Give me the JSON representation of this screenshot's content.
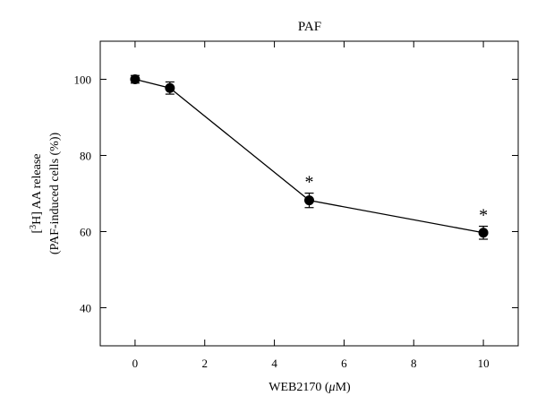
{
  "chart_data": {
    "type": "line",
    "title": "PAF",
    "xlabel_main": "WEB2170 (",
    "xlabel_unit_mu": "μ",
    "xlabel_unit_rest": "M)",
    "ylabel_line1_prefix": "[",
    "ylabel_line1_sup": "3",
    "ylabel_line1_suffix": "H] AA release",
    "ylabel_line2": "(PAF-induced cells (%))",
    "xlim": [
      -1,
      11
    ],
    "ylim": [
      30,
      110
    ],
    "x_ticks": [
      0,
      2,
      4,
      6,
      8,
      10
    ],
    "y_ticks": [
      40,
      60,
      80,
      100
    ],
    "x_tick_labels": [
      "0",
      "2",
      "4",
      "6",
      "8",
      "10"
    ],
    "y_tick_labels": [
      "40",
      "60",
      "80",
      "100"
    ],
    "series": [
      {
        "x": [
          0,
          1,
          5,
          10
        ],
        "y": [
          100,
          97.7,
          68.2,
          59.7
        ],
        "error": [
          1.0,
          1.6,
          1.9,
          1.7
        ],
        "significance": [
          "",
          "",
          "*",
          "*"
        ]
      }
    ],
    "grid": false,
    "legend": "none"
  }
}
